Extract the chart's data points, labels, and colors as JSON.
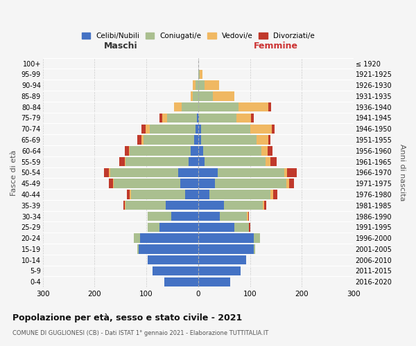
{
  "age_groups": [
    "0-4",
    "5-9",
    "10-14",
    "15-19",
    "20-24",
    "25-29",
    "30-34",
    "35-39",
    "40-44",
    "45-49",
    "50-54",
    "55-59",
    "60-64",
    "65-69",
    "70-74",
    "75-79",
    "80-84",
    "85-89",
    "90-94",
    "95-99",
    "100+"
  ],
  "birth_years": [
    "2016-2020",
    "2011-2015",
    "2006-2010",
    "2001-2005",
    "1996-2000",
    "1991-1995",
    "1986-1990",
    "1981-1985",
    "1976-1980",
    "1971-1975",
    "1966-1970",
    "1961-1965",
    "1956-1960",
    "1951-1955",
    "1946-1950",
    "1941-1945",
    "1936-1940",
    "1931-1935",
    "1926-1930",
    "1921-1925",
    "≤ 1920"
  ],
  "males": {
    "celibe": [
      65,
      88,
      98,
      115,
      112,
      75,
      52,
      62,
      25,
      35,
      38,
      18,
      14,
      8,
      5,
      2,
      0,
      0,
      0,
      0,
      0
    ],
    "coniugato": [
      0,
      0,
      0,
      3,
      12,
      22,
      45,
      78,
      105,
      128,
      132,
      122,
      118,
      98,
      88,
      58,
      32,
      10,
      5,
      0,
      0
    ],
    "vedovo": [
      0,
      0,
      0,
      0,
      0,
      0,
      0,
      2,
      2,
      2,
      2,
      2,
      2,
      3,
      8,
      10,
      15,
      5,
      5,
      0,
      0
    ],
    "divorziato": [
      0,
      0,
      0,
      0,
      0,
      0,
      0,
      2,
      5,
      8,
      10,
      10,
      8,
      8,
      8,
      5,
      0,
      0,
      0,
      0,
      0
    ]
  },
  "females": {
    "nubile": [
      62,
      82,
      92,
      108,
      108,
      70,
      42,
      50,
      22,
      32,
      38,
      12,
      10,
      5,
      5,
      2,
      0,
      0,
      0,
      0,
      0
    ],
    "coniugata": [
      0,
      0,
      0,
      2,
      12,
      28,
      52,
      75,
      118,
      138,
      128,
      118,
      112,
      108,
      95,
      72,
      78,
      28,
      12,
      3,
      0
    ],
    "vedova": [
      0,
      0,
      0,
      0,
      0,
      0,
      2,
      2,
      5,
      5,
      5,
      10,
      12,
      22,
      42,
      28,
      58,
      42,
      28,
      5,
      0
    ],
    "divorziata": [
      0,
      0,
      0,
      0,
      0,
      2,
      2,
      5,
      8,
      10,
      20,
      12,
      10,
      5,
      5,
      5,
      5,
      0,
      0,
      0,
      0
    ]
  },
  "colors": {
    "celibe": "#4472C4",
    "coniugato": "#AABF8F",
    "vedovo": "#F0B862",
    "divorziato": "#C0392B"
  },
  "legend_labels": [
    "Celibi/Nubili",
    "Coniugati/e",
    "Vedovi/e",
    "Divorziati/e"
  ],
  "title": "Popolazione per età, sesso e stato civile - 2021",
  "subtitle": "COMUNE DI GUGLIONESI (CB) - Dati ISTAT 1° gennaio 2021 - Elaborazione TUTTITALIA.IT",
  "xlabel_left": "Maschi",
  "xlabel_right": "Femmine",
  "ylabel_left": "Fasce di età",
  "ylabel_right": "Anni di nascita",
  "xlim": 300,
  "bg_color": "#f5f5f5",
  "bar_height": 0.85
}
